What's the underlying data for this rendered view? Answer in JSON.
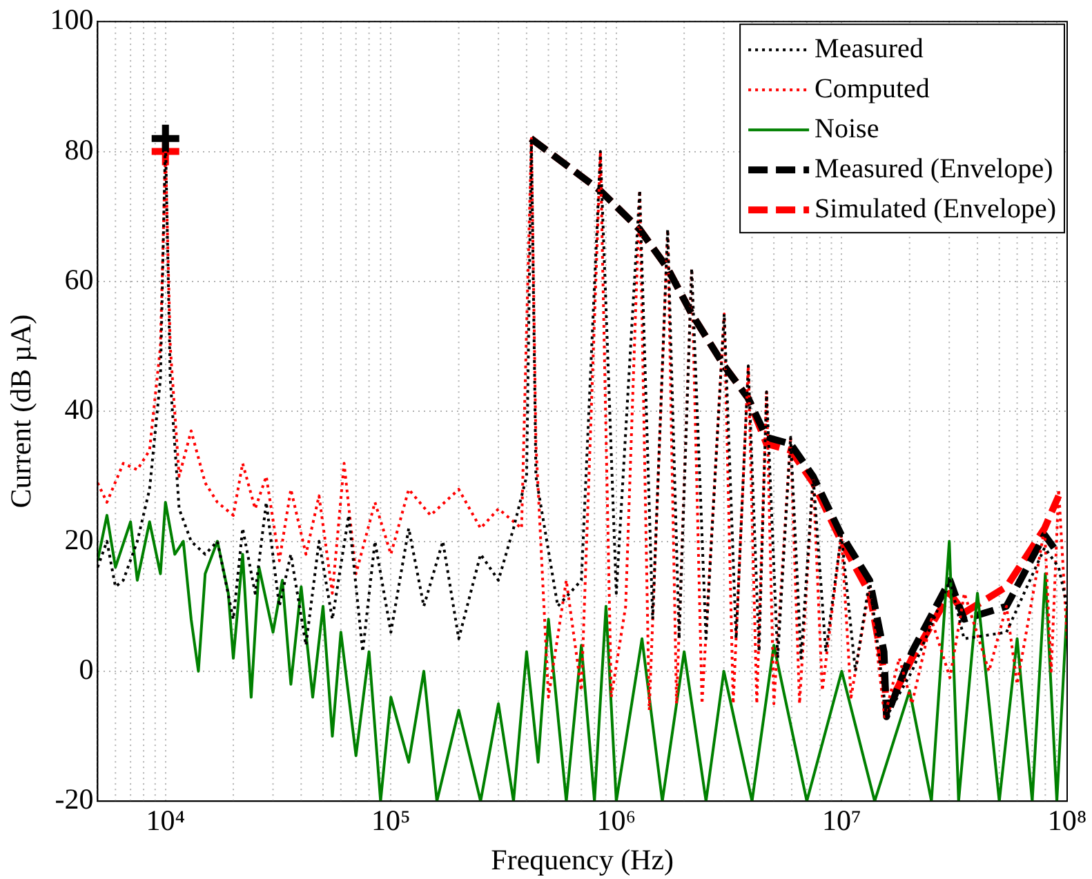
{
  "chart_data": {
    "type": "line",
    "xlabel": "Frequency (Hz)",
    "ylabel": "Current (dB µA)",
    "log": "x",
    "grid": true,
    "legend": "top right",
    "xlim": [
      5000,
      100000000
    ],
    "xticks": [
      {
        "value": 10000,
        "label": "10⁴"
      },
      {
        "value": 100000,
        "label": "10⁵"
      },
      {
        "value": 1000000,
        "label": "10⁶"
      },
      {
        "value": 10000000,
        "label": "10⁷"
      },
      {
        "value": 100000000,
        "label": "10⁸"
      }
    ],
    "ylim": [
      -20,
      100
    ],
    "yticks": [
      -20,
      0,
      20,
      40,
      60,
      80,
      100
    ],
    "series": [
      {
        "name": "Measured",
        "color": "#000000",
        "line_style": "dotted",
        "x": [
          5000,
          5500,
          6000,
          6500,
          7500,
          8500,
          9500,
          10000,
          10500,
          11500,
          13000,
          15000,
          17000,
          20000,
          22000,
          25000,
          28000,
          32000,
          36000,
          42000,
          48000,
          55000,
          65000,
          75000,
          85000,
          100000,
          120000,
          140000,
          170000,
          200000,
          250000,
          300000,
          350000,
          400000,
          420000,
          440000,
          550000,
          700000,
          850000,
          1000000,
          1270000,
          1450000,
          1690000,
          1900000,
          2160000,
          2500000,
          3010000,
          3400000,
          3850000,
          4300000,
          4640000,
          5200000,
          5930000,
          6600000,
          7470000,
          8500000,
          9960000,
          11500000,
          13300000,
          15800000,
          20500000,
          30200000,
          34900000,
          53800000,
          79400000,
          91700000,
          100000000
        ],
        "values": [
          16,
          20,
          13,
          14,
          20,
          28,
          45,
          82,
          45,
          25,
          20,
          18,
          20,
          8,
          22,
          12,
          26,
          10,
          18,
          4,
          20,
          8,
          24,
          3,
          20,
          6,
          22,
          10,
          20,
          5,
          18,
          14,
          22,
          30,
          82,
          30,
          10,
          14,
          80,
          12,
          74,
          8,
          68,
          5,
          62,
          5,
          55,
          5,
          47,
          3,
          43,
          2,
          36,
          2,
          30,
          3,
          21,
          0,
          14,
          -7,
          0,
          14,
          5,
          6,
          19,
          16,
          10
        ]
      },
      {
        "name": "Computed",
        "color": "#ff0000",
        "line_style": "dotted",
        "x": [
          5000,
          5500,
          6500,
          7500,
          8500,
          9500,
          10000,
          10500,
          11500,
          13000,
          15000,
          17000,
          20000,
          22000,
          25000,
          28000,
          32000,
          36000,
          42000,
          48000,
          55000,
          62000,
          70000,
          85000,
          100000,
          120000,
          150000,
          200000,
          250000,
          300000,
          380000,
          420000,
          440000,
          500000,
          600000,
          700000,
          850000,
          950000,
          1100000,
          1270000,
          1400000,
          1690000,
          1850000,
          2160000,
          2400000,
          3010000,
          3300000,
          3850000,
          4200000,
          4640000,
          5000000,
          5930000,
          6500000,
          7470000,
          8200000,
          9960000,
          11000000,
          13300000,
          15500000,
          18000000,
          20500000,
          25000000,
          30200000,
          35000000,
          45000000,
          53800000,
          60000000,
          79400000,
          85000000,
          91700000,
          100000000
        ],
        "values": [
          29,
          26,
          32,
          31,
          34,
          50,
          80,
          50,
          30,
          37,
          29,
          26,
          24,
          32,
          25,
          30,
          17,
          28,
          18,
          27,
          12,
          32,
          15,
          26,
          18,
          28,
          24,
          28,
          22,
          25,
          22,
          82,
          35,
          -4,
          14,
          -3,
          80,
          -4,
          10,
          74,
          -6,
          68,
          -5,
          62,
          -5,
          55,
          -5,
          47,
          -5,
          43,
          -5,
          36,
          -5,
          30,
          -3,
          21,
          -4,
          13,
          -7,
          2,
          -5,
          8,
          -1,
          12,
          0,
          10,
          -2,
          22,
          0,
          28,
          5
        ]
      },
      {
        "name": "Noise",
        "color": "#008000",
        "line_style": "solid",
        "x": [
          5000,
          5500,
          6000,
          7000,
          7500,
          8500,
          9500,
          10000,
          11000,
          12000,
          13000,
          14000,
          15000,
          17000,
          19000,
          20000,
          22000,
          24000,
          26000,
          30000,
          33000,
          36000,
          40000,
          45000,
          50000,
          55000,
          60000,
          70000,
          80000,
          90000,
          100000,
          120000,
          140000,
          160000,
          200000,
          250000,
          300000,
          350000,
          400000,
          450000,
          500000,
          600000,
          700000,
          800000,
          900000,
          1000000,
          1300000,
          1600000,
          2000000,
          2500000,
          3000000,
          4000000,
          5000000,
          7000000,
          10000000,
          14000000,
          20000000,
          25000000,
          30000000,
          33000000,
          40000000,
          50000000,
          60000000,
          70000000,
          80000000,
          90000000,
          100000000
        ],
        "values": [
          17,
          24,
          16,
          23,
          14,
          23,
          15,
          26,
          18,
          20,
          8,
          0,
          15,
          20,
          12,
          2,
          18,
          -4,
          16,
          6,
          14,
          -2,
          13,
          -4,
          10,
          -10,
          6,
          -13,
          3,
          -20,
          -4,
          -14,
          0,
          -20,
          -6,
          -20,
          -5,
          -20,
          3,
          -14,
          8,
          -20,
          4,
          -20,
          10,
          -20,
          5,
          -20,
          3,
          -20,
          0,
          -20,
          4,
          -20,
          0,
          -20,
          -3,
          -20,
          20,
          -20,
          12,
          -20,
          5,
          -20,
          15,
          -20,
          10
        ]
      },
      {
        "name": "Measured (Envelope)",
        "color": "#000000",
        "line_style": "dashed",
        "x": [
          418000,
          847000,
          1270000,
          1690000,
          2160000,
          3010000,
          3850000,
          4640000,
          5930000,
          7470000,
          9960000,
          13300000,
          15400000,
          15800000,
          20500000,
          30200000,
          34900000,
          53800000,
          79400000,
          91700000
        ],
        "values": [
          82,
          74,
          68,
          62,
          55,
          47,
          42,
          36,
          35,
          30,
          21,
          14,
          3,
          -7,
          3,
          14,
          8,
          10,
          21,
          18
        ]
      },
      {
        "name": "Simulated (Envelope)",
        "color": "#ff0000",
        "line_style": "dashed",
        "x": [
          418000,
          847000,
          1270000,
          1690000,
          2160000,
          3010000,
          3850000,
          4640000,
          5930000,
          7470000,
          9960000,
          13300000,
          15400000,
          15800000,
          20500000,
          30200000,
          34900000,
          53800000,
          79400000,
          91700000
        ],
        "values": [
          82,
          74,
          68,
          62,
          55,
          47,
          42,
          35,
          34,
          29,
          20,
          12,
          0,
          -6,
          2,
          12,
          9,
          13,
          22,
          27
        ]
      },
      {
        "type": "scatter",
        "color": "#000000",
        "marker": "cross",
        "x": [
          10000
        ],
        "values": [
          82
        ]
      },
      {
        "type": "scatter",
        "color": "#ff0000",
        "marker": "cross",
        "x": [
          10000
        ],
        "values": [
          80
        ]
      }
    ]
  }
}
